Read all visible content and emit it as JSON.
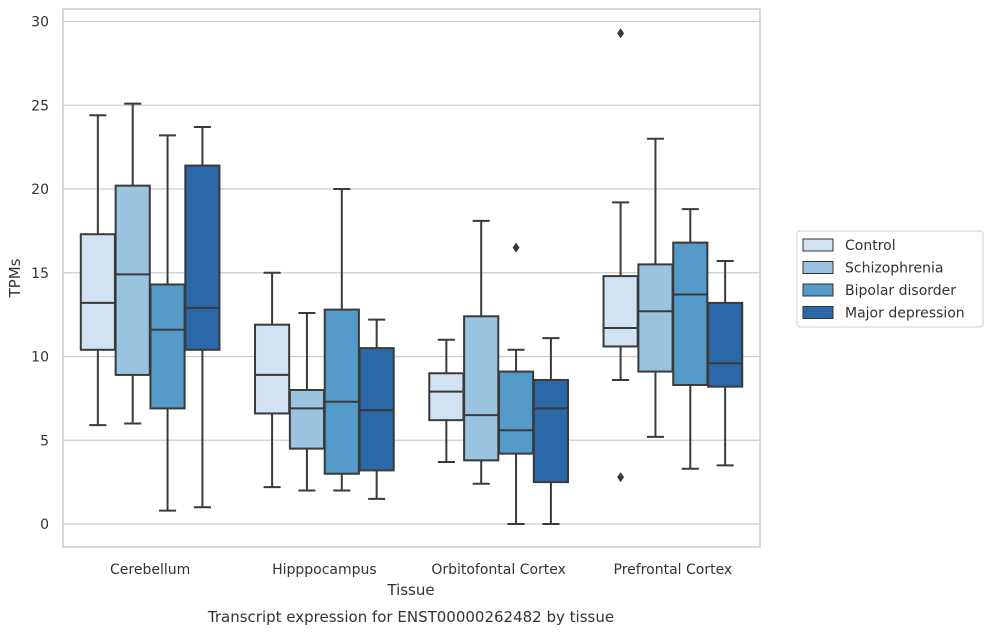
{
  "chart_data": {
    "type": "box",
    "xlabel": "Tissue",
    "ylabel": "TPMs",
    "caption": "Transcript expression for ENST00000262482 by tissue",
    "ylim": [
      -1.3,
      30.8
    ],
    "yticks": [
      0,
      5,
      10,
      15,
      20,
      25,
      30
    ],
    "grid": "horizontal",
    "legend_position": "right",
    "categories": [
      "Cerebellum",
      "Hipppocampus",
      "Orbitofontal Cortex",
      "Prefrontal Cortex"
    ],
    "series": [
      {
        "name": "Control",
        "color": "#d1e2f2",
        "boxes": [
          {
            "whisker_low": 5.9,
            "q1": 10.4,
            "median": 13.2,
            "q3": 17.3,
            "whisker_high": 24.4,
            "outliers": []
          },
          {
            "whisker_low": 2.2,
            "q1": 6.6,
            "median": 8.9,
            "q3": 11.9,
            "whisker_high": 15.0,
            "outliers": []
          },
          {
            "whisker_low": 3.7,
            "q1": 6.2,
            "median": 7.9,
            "q3": 9.0,
            "whisker_high": 11.0,
            "outliers": []
          },
          {
            "whisker_low": 8.6,
            "q1": 10.6,
            "median": 11.7,
            "q3": 14.8,
            "whisker_high": 19.2,
            "outliers": [
              29.3,
              2.8
            ]
          }
        ]
      },
      {
        "name": "Schizophrenia",
        "color": "#9ac3df",
        "boxes": [
          {
            "whisker_low": 6.0,
            "q1": 8.9,
            "median": 14.9,
            "q3": 20.2,
            "whisker_high": 25.1,
            "outliers": []
          },
          {
            "whisker_low": 2.0,
            "q1": 4.5,
            "median": 6.9,
            "q3": 8.0,
            "whisker_high": 12.6,
            "outliers": []
          },
          {
            "whisker_low": 2.4,
            "q1": 3.8,
            "median": 6.5,
            "q3": 12.4,
            "whisker_high": 18.1,
            "outliers": []
          },
          {
            "whisker_low": 5.2,
            "q1": 9.1,
            "median": 12.7,
            "q3": 15.5,
            "whisker_high": 23.0,
            "outliers": []
          }
        ]
      },
      {
        "name": "Bipolar disorder",
        "color": "#5499c7",
        "boxes": [
          {
            "whisker_low": 0.8,
            "q1": 6.9,
            "median": 11.6,
            "q3": 14.3,
            "whisker_high": 23.2,
            "outliers": []
          },
          {
            "whisker_low": 2.0,
            "q1": 3.0,
            "median": 7.3,
            "q3": 12.8,
            "whisker_high": 20.0,
            "outliers": []
          },
          {
            "whisker_low": 0.0,
            "q1": 4.2,
            "median": 5.6,
            "q3": 9.1,
            "whisker_high": 10.4,
            "outliers": [
              16.5
            ]
          },
          {
            "whisker_low": 3.3,
            "q1": 8.3,
            "median": 13.7,
            "q3": 16.8,
            "whisker_high": 18.8,
            "outliers": []
          }
        ]
      },
      {
        "name": "Major depression",
        "color": "#2a68a7",
        "boxes": [
          {
            "whisker_low": 1.0,
            "q1": 10.4,
            "median": 12.9,
            "q3": 21.4,
            "whisker_high": 23.7,
            "outliers": []
          },
          {
            "whisker_low": 1.5,
            "q1": 3.2,
            "median": 6.8,
            "q3": 10.5,
            "whisker_high": 12.2,
            "outliers": []
          },
          {
            "whisker_low": 0.0,
            "q1": 2.5,
            "median": 6.9,
            "q3": 8.6,
            "whisker_high": 11.1,
            "outliers": []
          },
          {
            "whisker_low": 3.5,
            "q1": 8.2,
            "median": 9.6,
            "q3": 13.2,
            "whisker_high": 15.7,
            "outliers": []
          }
        ]
      }
    ]
  }
}
